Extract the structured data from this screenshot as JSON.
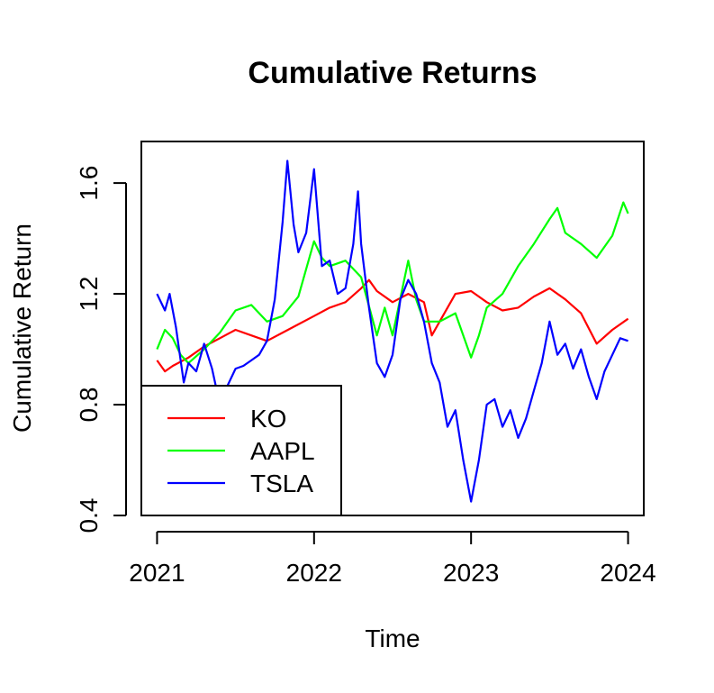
{
  "chart_data": {
    "type": "line",
    "title": "Cumulative Returns",
    "xlabel": "Time",
    "ylabel": "Cumulative Return",
    "xlim": [
      2020.9,
      2024.1
    ],
    "ylim": [
      0.4,
      1.75
    ],
    "x_ticks": [
      2021,
      2022,
      2023,
      2024
    ],
    "x_tick_labels": [
      "2021",
      "2022",
      "2023",
      "2024"
    ],
    "y_ticks": [
      0.4,
      0.8,
      1.2,
      1.6
    ],
    "y_tick_labels": [
      "0.4",
      "0.8",
      "1.2",
      "1.6"
    ],
    "grid": false,
    "legend": {
      "position": "bottom-left"
    },
    "series": [
      {
        "name": "KO",
        "color": "#ff0000",
        "points": [
          [
            2021.0,
            0.96
          ],
          [
            2021.05,
            0.92
          ],
          [
            2021.1,
            0.94
          ],
          [
            2021.2,
            0.97
          ],
          [
            2021.3,
            1.01
          ],
          [
            2021.4,
            1.04
          ],
          [
            2021.5,
            1.07
          ],
          [
            2021.6,
            1.05
          ],
          [
            2021.7,
            1.03
          ],
          [
            2021.8,
            1.06
          ],
          [
            2021.9,
            1.09
          ],
          [
            2022.0,
            1.12
          ],
          [
            2022.1,
            1.15
          ],
          [
            2022.2,
            1.17
          ],
          [
            2022.3,
            1.22
          ],
          [
            2022.35,
            1.25
          ],
          [
            2022.4,
            1.21
          ],
          [
            2022.5,
            1.17
          ],
          [
            2022.6,
            1.2
          ],
          [
            2022.7,
            1.17
          ],
          [
            2022.75,
            1.05
          ],
          [
            2022.8,
            1.1
          ],
          [
            2022.9,
            1.2
          ],
          [
            2023.0,
            1.21
          ],
          [
            2023.1,
            1.17
          ],
          [
            2023.2,
            1.14
          ],
          [
            2023.3,
            1.15
          ],
          [
            2023.4,
            1.19
          ],
          [
            2023.5,
            1.22
          ],
          [
            2023.6,
            1.18
          ],
          [
            2023.7,
            1.13
          ],
          [
            2023.8,
            1.02
          ],
          [
            2023.9,
            1.07
          ],
          [
            2024.0,
            1.11
          ]
        ]
      },
      {
        "name": "AAPL",
        "color": "#00ff00",
        "points": [
          [
            2021.0,
            1.0
          ],
          [
            2021.05,
            1.07
          ],
          [
            2021.1,
            1.04
          ],
          [
            2021.15,
            0.98
          ],
          [
            2021.2,
            0.95
          ],
          [
            2021.3,
            1.0
          ],
          [
            2021.4,
            1.06
          ],
          [
            2021.5,
            1.14
          ],
          [
            2021.6,
            1.16
          ],
          [
            2021.7,
            1.1
          ],
          [
            2021.8,
            1.12
          ],
          [
            2021.9,
            1.19
          ],
          [
            2022.0,
            1.39
          ],
          [
            2022.05,
            1.33
          ],
          [
            2022.1,
            1.3
          ],
          [
            2022.2,
            1.32
          ],
          [
            2022.3,
            1.26
          ],
          [
            2022.4,
            1.05
          ],
          [
            2022.45,
            1.15
          ],
          [
            2022.5,
            1.05
          ],
          [
            2022.6,
            1.32
          ],
          [
            2022.65,
            1.18
          ],
          [
            2022.7,
            1.1
          ],
          [
            2022.8,
            1.1
          ],
          [
            2022.9,
            1.13
          ],
          [
            2023.0,
            0.97
          ],
          [
            2023.05,
            1.05
          ],
          [
            2023.1,
            1.15
          ],
          [
            2023.2,
            1.2
          ],
          [
            2023.3,
            1.3
          ],
          [
            2023.4,
            1.38
          ],
          [
            2023.5,
            1.47
          ],
          [
            2023.55,
            1.51
          ],
          [
            2023.6,
            1.42
          ],
          [
            2023.7,
            1.38
          ],
          [
            2023.8,
            1.33
          ],
          [
            2023.9,
            1.41
          ],
          [
            2023.97,
            1.53
          ],
          [
            2024.0,
            1.49
          ]
        ]
      },
      {
        "name": "TSLA",
        "color": "#0000ff",
        "points": [
          [
            2021.0,
            1.2
          ],
          [
            2021.05,
            1.14
          ],
          [
            2021.08,
            1.2
          ],
          [
            2021.12,
            1.08
          ],
          [
            2021.17,
            0.88
          ],
          [
            2021.2,
            0.95
          ],
          [
            2021.25,
            0.92
          ],
          [
            2021.3,
            1.02
          ],
          [
            2021.35,
            0.93
          ],
          [
            2021.4,
            0.8
          ],
          [
            2021.45,
            0.87
          ],
          [
            2021.5,
            0.93
          ],
          [
            2021.55,
            0.94
          ],
          [
            2021.6,
            0.96
          ],
          [
            2021.65,
            0.98
          ],
          [
            2021.7,
            1.03
          ],
          [
            2021.75,
            1.18
          ],
          [
            2021.8,
            1.46
          ],
          [
            2021.83,
            1.68
          ],
          [
            2021.87,
            1.45
          ],
          [
            2021.9,
            1.35
          ],
          [
            2021.95,
            1.42
          ],
          [
            2022.0,
            1.65
          ],
          [
            2022.05,
            1.3
          ],
          [
            2022.1,
            1.32
          ],
          [
            2022.15,
            1.2
          ],
          [
            2022.2,
            1.22
          ],
          [
            2022.25,
            1.38
          ],
          [
            2022.28,
            1.57
          ],
          [
            2022.3,
            1.38
          ],
          [
            2022.35,
            1.15
          ],
          [
            2022.4,
            0.95
          ],
          [
            2022.45,
            0.9
          ],
          [
            2022.5,
            0.98
          ],
          [
            2022.55,
            1.18
          ],
          [
            2022.6,
            1.25
          ],
          [
            2022.65,
            1.2
          ],
          [
            2022.7,
            1.1
          ],
          [
            2022.75,
            0.95
          ],
          [
            2022.8,
            0.88
          ],
          [
            2022.85,
            0.72
          ],
          [
            2022.9,
            0.78
          ],
          [
            2022.95,
            0.6
          ],
          [
            2023.0,
            0.45
          ],
          [
            2023.05,
            0.6
          ],
          [
            2023.1,
            0.8
          ],
          [
            2023.15,
            0.82
          ],
          [
            2023.2,
            0.72
          ],
          [
            2023.25,
            0.78
          ],
          [
            2023.3,
            0.68
          ],
          [
            2023.35,
            0.75
          ],
          [
            2023.4,
            0.85
          ],
          [
            2023.45,
            0.95
          ],
          [
            2023.5,
            1.1
          ],
          [
            2023.55,
            0.98
          ],
          [
            2023.6,
            1.02
          ],
          [
            2023.65,
            0.93
          ],
          [
            2023.7,
            1.0
          ],
          [
            2023.75,
            0.9
          ],
          [
            2023.8,
            0.82
          ],
          [
            2023.85,
            0.92
          ],
          [
            2023.9,
            0.98
          ],
          [
            2023.95,
            1.04
          ],
          [
            2024.0,
            1.03
          ]
        ]
      }
    ]
  }
}
